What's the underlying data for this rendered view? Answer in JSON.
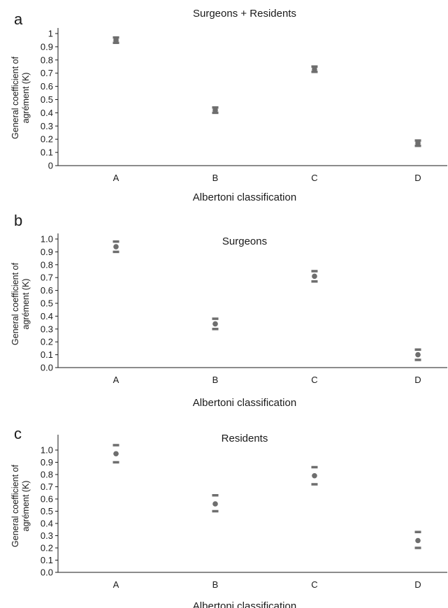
{
  "chart_data": [
    {
      "panel_label": "a",
      "type": "scatter",
      "title": "Surgeons + Residents",
      "xlabel": "Albertoni classification",
      "ylabel_lines": [
        "General coefficient of",
        "agrément (K)"
      ],
      "categories": [
        "A",
        "B",
        "C",
        "D"
      ],
      "yticks": [
        "0",
        "0.1",
        "0.2",
        "0.3",
        "0.4",
        "0.5",
        "0.6",
        "0.7",
        "0.8",
        "0.9",
        "1"
      ],
      "ylim": [
        0,
        1
      ],
      "series": [
        {
          "values": [
            0.95,
            0.42,
            0.73,
            0.17
          ],
          "lower": [
            0.93,
            0.4,
            0.71,
            0.15
          ],
          "upper": [
            0.97,
            0.44,
            0.75,
            0.19
          ]
        }
      ],
      "grid": false,
      "marker_color": "#6e6e6e"
    },
    {
      "panel_label": "b",
      "type": "scatter",
      "title": "Surgeons",
      "xlabel": "Albertoni classification",
      "ylabel_lines": [
        "General coefficient of",
        "agrément (K)"
      ],
      "categories": [
        "A",
        "B",
        "C",
        "D"
      ],
      "yticks": [
        "0.0",
        "0.1",
        "0.2",
        "0.3",
        "0.4",
        "0.5",
        "0.6",
        "0.7",
        "0.8",
        "0.9",
        "1.0"
      ],
      "ylim": [
        0,
        1
      ],
      "series": [
        {
          "values": [
            0.94,
            0.34,
            0.71,
            0.1
          ],
          "lower": [
            0.9,
            0.3,
            0.67,
            0.06
          ],
          "upper": [
            0.98,
            0.38,
            0.75,
            0.14
          ]
        }
      ],
      "grid": false,
      "marker_color": "#6e6e6e"
    },
    {
      "panel_label": "c",
      "type": "scatter",
      "title": "Residents",
      "xlabel": "Albertoni classification",
      "ylabel_lines": [
        "General coefficient of",
        "agrément (K)"
      ],
      "categories": [
        "A",
        "B",
        "C",
        "D"
      ],
      "yticks": [
        "0.0",
        "0.1",
        "0.2",
        "0.3",
        "0.4",
        "0.5",
        "0.6",
        "0.7",
        "0.8",
        "0.9",
        "1.0"
      ],
      "ylim": [
        0,
        1.08
      ],
      "series": [
        {
          "values": [
            0.97,
            0.56,
            0.79,
            0.26
          ],
          "lower": [
            0.9,
            0.5,
            0.72,
            0.2
          ],
          "upper": [
            1.04,
            0.63,
            0.86,
            0.33
          ]
        }
      ],
      "grid": false,
      "marker_color": "#6e6e6e"
    }
  ]
}
